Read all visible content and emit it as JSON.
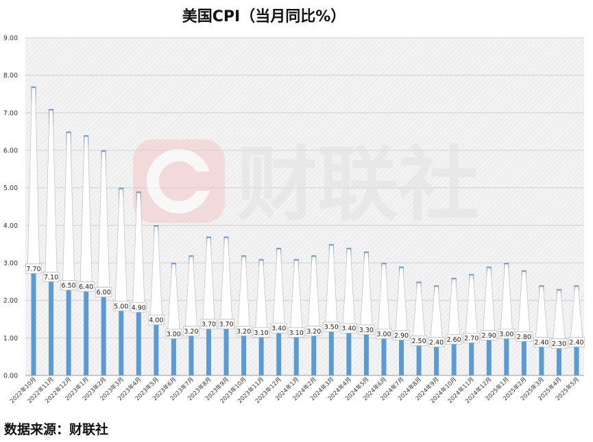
{
  "chart_data": {
    "type": "bar",
    "title": "美国CPI（当月同比%）",
    "source": "数据来源：财联社",
    "watermark": "财联社",
    "ylim": [
      0,
      9
    ],
    "yticks": [
      "0.00",
      "1.00",
      "2.00",
      "3.00",
      "4.00",
      "5.00",
      "6.00",
      "7.00",
      "8.00",
      "9.00"
    ],
    "grid": true,
    "bar_color": "#5b9bd5",
    "categories": [
      "2022年10月",
      "2022年11月",
      "2022年12月",
      "2023年1月",
      "2023年2月",
      "2023年3月",
      "2023年4月",
      "2023年5月",
      "2023年6月",
      "2023年7月",
      "2023年8月",
      "2023年9月",
      "2023年10月",
      "2023年11月",
      "2023年12月",
      "2024年1月",
      "2024年2月",
      "2024年3月",
      "2024年4月",
      "2024年5月",
      "2024年6月",
      "2024年7月",
      "2024年8月",
      "2024年9月",
      "2024年10月",
      "2024年11月",
      "2024年12月",
      "2025年1月",
      "2025年2月",
      "2025年3月",
      "2025年4月",
      "2025年5月"
    ],
    "values": [
      7.7,
      7.1,
      6.5,
      6.4,
      6.0,
      5.0,
      4.9,
      4.0,
      3.0,
      3.2,
      3.7,
      3.7,
      3.2,
      3.1,
      3.4,
      3.1,
      3.2,
      3.5,
      3.4,
      3.3,
      3.0,
      2.9,
      2.5,
      2.4,
      2.6,
      2.7,
      2.9,
      3.0,
      2.8,
      2.4,
      2.3,
      2.4
    ],
    "labels": [
      "7.70",
      "7.10",
      "6.50",
      "6.40",
      "6.00",
      "5.00",
      "4.90",
      "4.00",
      "3.00",
      "3.20",
      "3.70",
      "3.70",
      "3.20",
      "3.10",
      "3.40",
      "3.10",
      "3.20",
      "3.50",
      "3.40",
      "3.30",
      "3.00",
      "2.90",
      "2.50",
      "2.40",
      "2.60",
      "2.70",
      "2.90",
      "3.00",
      "2.80",
      "2.40",
      "2.30",
      "2.40"
    ]
  }
}
